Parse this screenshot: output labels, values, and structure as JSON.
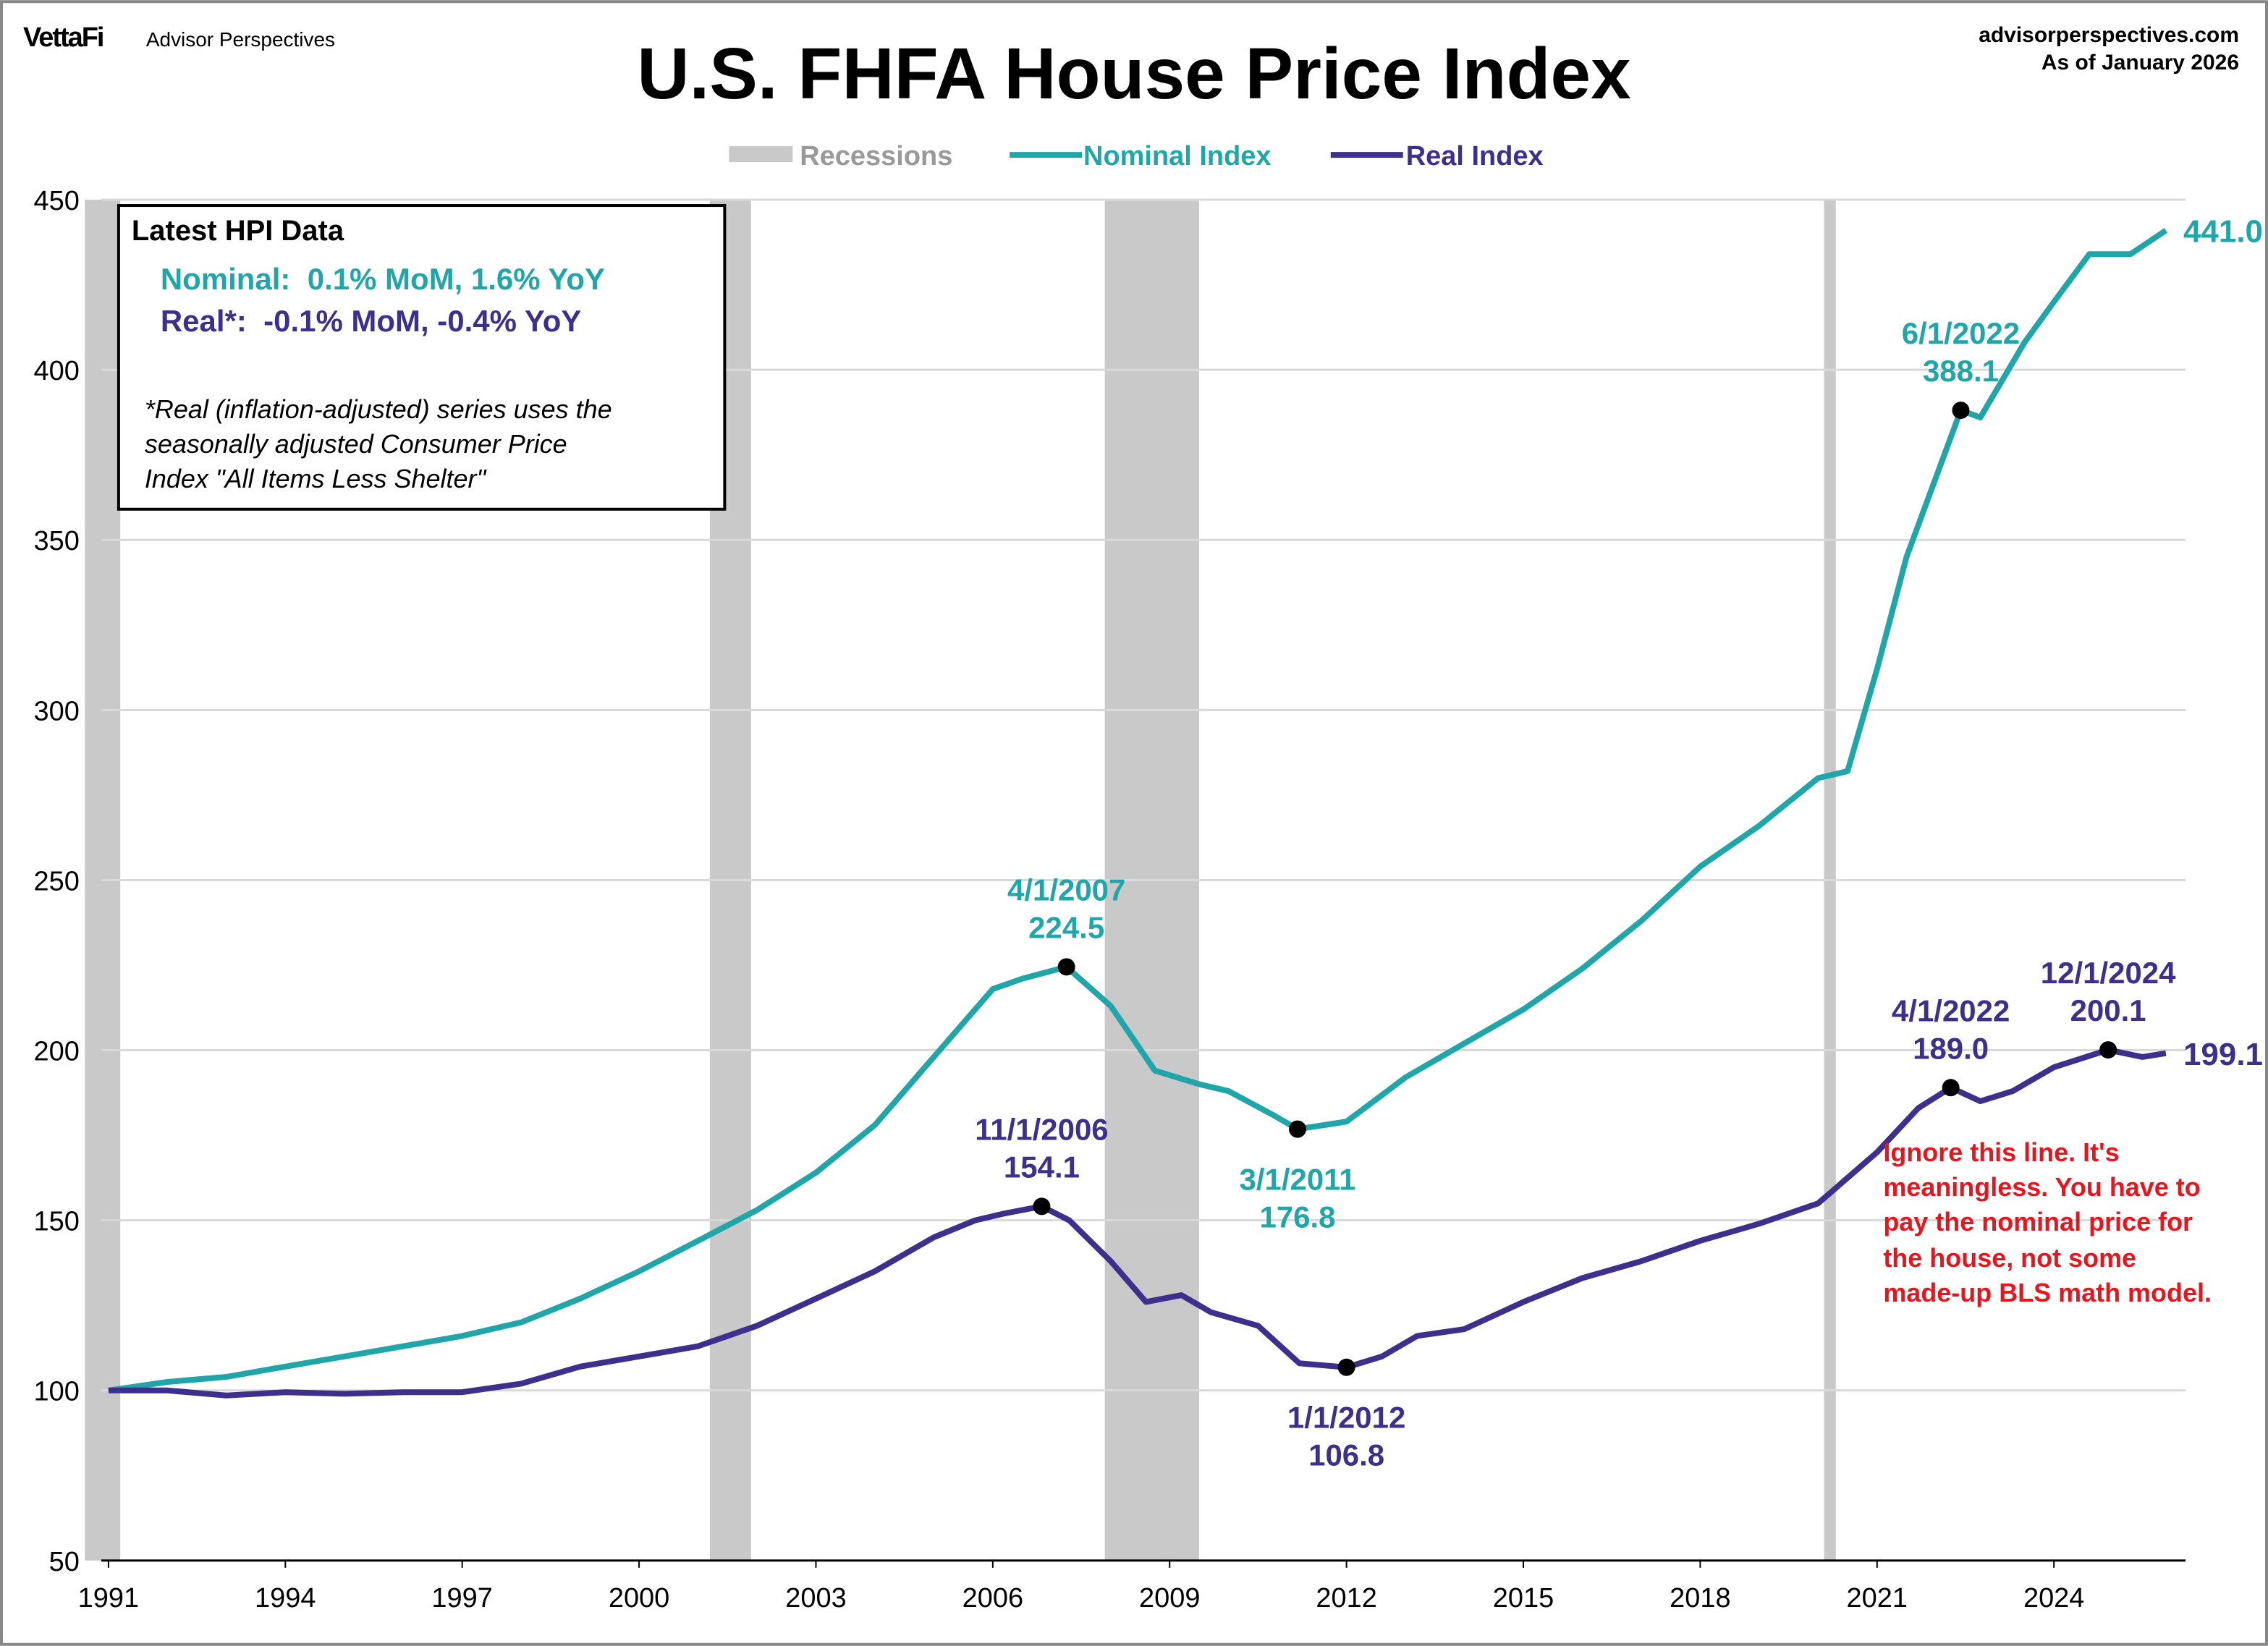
{
  "header": {
    "brand": "VettaFi",
    "brand_sub": "Advisor Perspectives",
    "site": "advisorperspectives.com",
    "as_of": "As of January 2026"
  },
  "info_box": {
    "title": "Latest HPI Data",
    "nominal": "Nominal:  0.1% MoM, 1.6% YoY",
    "real": "Real*:  -0.1% MoM, -0.4% YoY",
    "note": [
      "*Real (inflation-adjusted) series uses the",
      "seasonally adjusted Consumer Price",
      "Index \"All Items Less Shelter\""
    ]
  },
  "warning_note": [
    "Ignore this line. It's",
    "meaningless. You have to",
    "pay the nominal price for",
    "the house, not some",
    "made-up BLS math model."
  ],
  "colors": {
    "nominal": "#20a6a8",
    "real": "#3f2f8c",
    "recession": "#c9c9c9",
    "warning": "#e8141e"
  },
  "chart_data": {
    "type": "line",
    "title": "U.S. FHFA House Price Index",
    "xlabel": "",
    "ylabel": "",
    "xlim": [
      1990.9,
      2026.3
    ],
    "ylim": [
      50,
      450
    ],
    "yticks": [
      50,
      100,
      150,
      200,
      250,
      300,
      350,
      400,
      450
    ],
    "xticks": [
      1991,
      1994,
      1997,
      2000,
      2003,
      2006,
      2009,
      2012,
      2015,
      2018,
      2021,
      2024
    ],
    "grid": "horizontal",
    "legend": {
      "placement": "top-center",
      "entries": [
        "Recessions",
        "Nominal Index",
        "Real Index"
      ]
    },
    "recessions": [
      [
        1990.6,
        1991.2
      ],
      [
        2001.2,
        2001.9
      ],
      [
        2007.9,
        2009.5
      ],
      [
        2020.1,
        2020.3
      ]
    ],
    "series": [
      {
        "name": "Nominal Index",
        "end_label": "441.0",
        "points": [
          [
            1991,
            100
          ],
          [
            1992,
            102.5
          ],
          [
            1993,
            104
          ],
          [
            1994,
            107
          ],
          [
            1995,
            110
          ],
          [
            1996,
            113
          ],
          [
            1997,
            116
          ],
          [
            1998,
            120
          ],
          [
            1999,
            127
          ],
          [
            2000,
            135
          ],
          [
            2001,
            144
          ],
          [
            2002,
            153
          ],
          [
            2003,
            164
          ],
          [
            2004,
            178
          ],
          [
            2005,
            198
          ],
          [
            2006,
            218
          ],
          [
            2006.5,
            221
          ],
          [
            2007.25,
            224.5
          ],
          [
            2008,
            213
          ],
          [
            2008.75,
            194
          ],
          [
            2009.5,
            190
          ],
          [
            2010,
            188
          ],
          [
            2010.75,
            181
          ],
          [
            2011.17,
            176.8
          ],
          [
            2012,
            179
          ],
          [
            2013,
            192
          ],
          [
            2014,
            202
          ],
          [
            2015,
            212
          ],
          [
            2016,
            224
          ],
          [
            2017,
            238
          ],
          [
            2018,
            254
          ],
          [
            2019,
            266
          ],
          [
            2020,
            280
          ],
          [
            2020.5,
            282
          ],
          [
            2021,
            312
          ],
          [
            2021.5,
            345
          ],
          [
            2022.42,
            388.1
          ],
          [
            2022.75,
            386
          ],
          [
            2023.5,
            408
          ],
          [
            2024,
            420
          ],
          [
            2024.6,
            434
          ],
          [
            2025.3,
            434
          ],
          [
            2025.9,
            441
          ]
        ]
      },
      {
        "name": "Real Index",
        "end_label": "199.1",
        "points": [
          [
            1991,
            100
          ],
          [
            1992,
            100
          ],
          [
            1993,
            98.5
          ],
          [
            1994,
            99.5
          ],
          [
            1995,
            99
          ],
          [
            1996,
            99.5
          ],
          [
            1997,
            99.5
          ],
          [
            1998,
            102
          ],
          [
            1999,
            107
          ],
          [
            2000,
            110
          ],
          [
            2001,
            113
          ],
          [
            2002,
            119
          ],
          [
            2003,
            127
          ],
          [
            2004,
            135
          ],
          [
            2005,
            145
          ],
          [
            2005.7,
            150
          ],
          [
            2006.2,
            152
          ],
          [
            2006.83,
            154.1
          ],
          [
            2007.3,
            150
          ],
          [
            2008,
            138
          ],
          [
            2008.6,
            126
          ],
          [
            2009.2,
            128
          ],
          [
            2009.7,
            123
          ],
          [
            2010.5,
            119
          ],
          [
            2011.2,
            108
          ],
          [
            2012,
            106.8
          ],
          [
            2012.6,
            110
          ],
          [
            2013.2,
            116
          ],
          [
            2014,
            118
          ],
          [
            2015,
            126
          ],
          [
            2016,
            133
          ],
          [
            2017,
            138
          ],
          [
            2018,
            144
          ],
          [
            2019,
            149
          ],
          [
            2020,
            155
          ],
          [
            2021,
            170
          ],
          [
            2021.7,
            183
          ],
          [
            2022.25,
            189
          ],
          [
            2022.75,
            185
          ],
          [
            2023.3,
            188
          ],
          [
            2024,
            195
          ],
          [
            2024.92,
            200.1
          ],
          [
            2025.5,
            198
          ],
          [
            2025.9,
            199.1
          ]
        ]
      }
    ],
    "annotations": [
      {
        "series": 0,
        "x": 2007.25,
        "y": 224.5,
        "date": "4/1/2007",
        "value": "224.5",
        "pos": "above"
      },
      {
        "series": 0,
        "x": 2011.17,
        "y": 176.8,
        "date": "3/1/2011",
        "value": "176.8",
        "pos": "below"
      },
      {
        "series": 0,
        "x": 2022.42,
        "y": 388.1,
        "date": "6/1/2022",
        "value": "388.1",
        "pos": "above"
      },
      {
        "series": 1,
        "x": 2006.83,
        "y": 154.1,
        "date": "11/1/2006",
        "value": "154.1",
        "pos": "above"
      },
      {
        "series": 1,
        "x": 2012.0,
        "y": 106.8,
        "date": "1/1/2012",
        "value": "106.8",
        "pos": "below"
      },
      {
        "series": 1,
        "x": 2022.25,
        "y": 189.0,
        "date": "4/1/2022",
        "value": "189.0",
        "pos": "above"
      },
      {
        "series": 1,
        "x": 2024.92,
        "y": 200.1,
        "date": "12/1/2024",
        "value": "200.1",
        "pos": "above"
      }
    ]
  }
}
